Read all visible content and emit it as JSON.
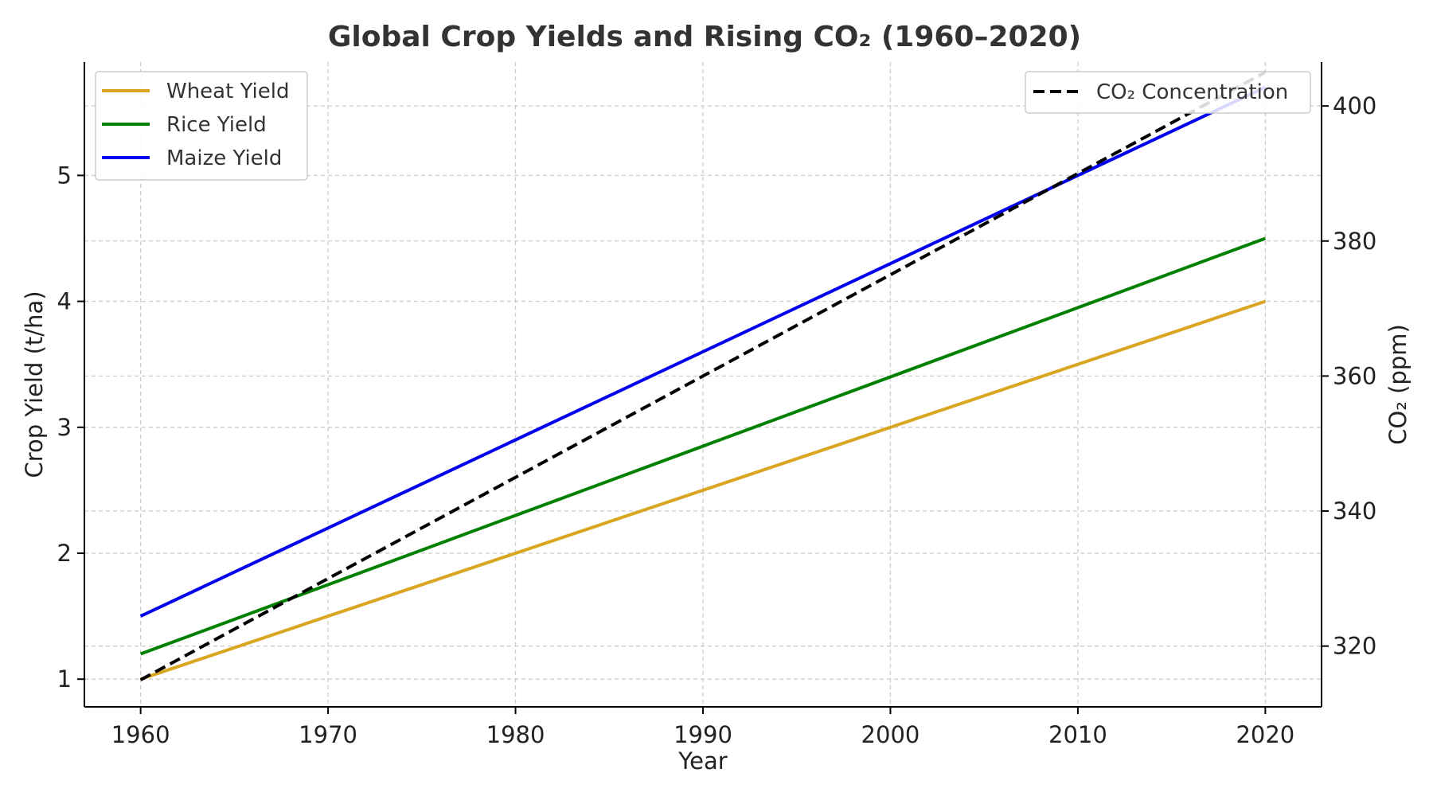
{
  "chart_data": {
    "type": "line",
    "title": "Global Crop Yields and Rising CO₂ (1960–2020)",
    "xlabel": "Year",
    "ylabel": "Crop Yield (t/ha)",
    "y2label": "CO₂ (ppm)",
    "xlim": [
      1957,
      2023
    ],
    "ylim": [
      0.78,
      5.9
    ],
    "y2lim": [
      311,
      406.5
    ],
    "x_ticks": [
      1960,
      1970,
      1980,
      1990,
      2000,
      2010,
      2020
    ],
    "y_ticks": [
      1,
      2,
      3,
      4,
      5
    ],
    "y2_ticks": [
      320,
      340,
      360,
      380,
      400
    ],
    "grid": true,
    "x": [
      1960,
      2020
    ],
    "series": [
      {
        "name": "Wheat Yield",
        "axis": "left",
        "values": [
          1.0,
          4.0
        ],
        "color": "#DAA520",
        "dash": "solid"
      },
      {
        "name": "Rice Yield",
        "axis": "left",
        "values": [
          1.2,
          4.5
        ],
        "color": "#008000",
        "dash": "solid"
      },
      {
        "name": "Maize Yield",
        "axis": "left",
        "values": [
          1.5,
          5.7
        ],
        "color": "#0000EE",
        "dash": "solid"
      },
      {
        "name": "CO₂ Concentration",
        "axis": "right",
        "values": [
          315,
          405
        ],
        "color": "#000000",
        "dash": "dashed"
      }
    ],
    "legend_left": {
      "position": "top-left",
      "entries": [
        "Wheat Yield",
        "Rice Yield",
        "Maize Yield"
      ]
    },
    "legend_right": {
      "position": "top-right",
      "entries": [
        "CO₂ Concentration"
      ]
    }
  }
}
